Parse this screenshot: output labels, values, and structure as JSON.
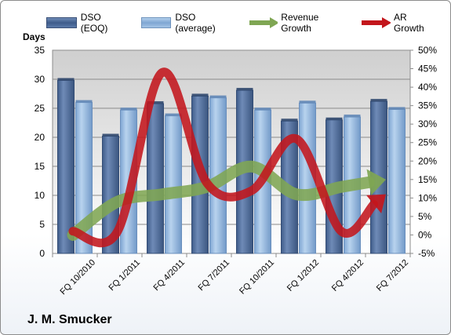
{
  "chart_data": {
    "type": "bar",
    "categories": [
      "FQ 10/2010",
      "FQ 1/2011",
      "FQ 4/2011",
      "FQ 7/2011",
      "FQ 10/2011",
      "FQ 1/2012",
      "FQ 4/2012",
      "FQ 7/2012"
    ],
    "ylabel": "Days",
    "ylim": [
      0,
      35
    ],
    "yticks": [
      "0",
      "5",
      "10",
      "15",
      "20",
      "25",
      "30",
      "35"
    ],
    "y2lim": [
      -5,
      50
    ],
    "y2ticks": [
      "-5%",
      "0%",
      "5%",
      "10%",
      "15%",
      "20%",
      "25%",
      "30%",
      "35%",
      "40%",
      "45%",
      "50%"
    ],
    "grid": true,
    "legend_position": "top",
    "series": [
      {
        "name": "DSO (EOQ)",
        "type": "bar",
        "axis": "left",
        "color": "#4f6c9a",
        "values": [
          29.8,
          20.2,
          25.8,
          27.1,
          28.1,
          22.8,
          23.0,
          26.2
        ]
      },
      {
        "name": "DSO (average)",
        "type": "bar",
        "axis": "left",
        "color": "#8fb4dc",
        "values": [
          26.0,
          24.7,
          23.7,
          26.8,
          24.7,
          25.9,
          23.5,
          24.8
        ]
      },
      {
        "name": "Revenue Growth",
        "type": "line",
        "axis": "right",
        "color": "#7fa653",
        "values": [
          0,
          9,
          11,
          13,
          18.5,
          11,
          13,
          15
        ]
      },
      {
        "name": "AR Growth",
        "type": "line",
        "axis": "right",
        "color": "#c3161c",
        "values": [
          1,
          1,
          44,
          14,
          12,
          26,
          1,
          11
        ]
      }
    ]
  },
  "company_name": "J. M. Smucker"
}
